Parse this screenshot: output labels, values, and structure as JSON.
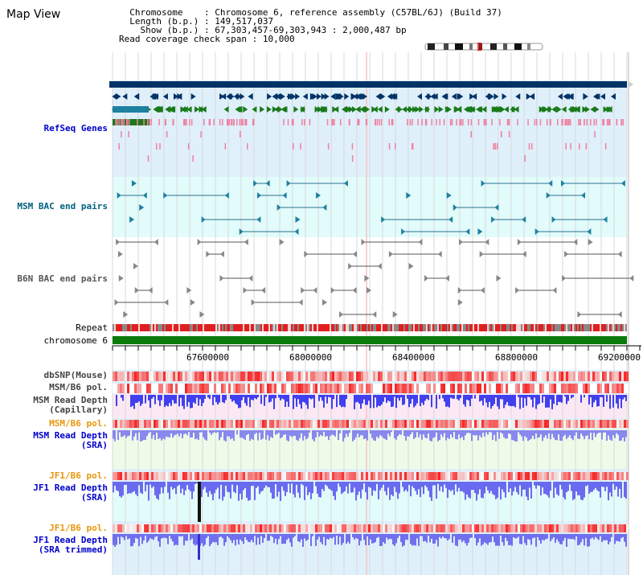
{
  "title": "Map View",
  "info": {
    "chromosome_label": "Chromosome",
    "chromosome_value": "Chromosome 6, reference assembly (C57BL/6J) (Build 37)",
    "length_label": "Length (b.p.)",
    "length_value": "149,517,037",
    "show_label": "Show (b.p.)",
    "show_value": "67,303,457-69,303,943 : 2,000,487 bp",
    "coverage_label": "Read coverage check span",
    "coverage_value": "10,000"
  },
  "tracks": {
    "refseq": "RefSeq Genes",
    "msm_bac": "MSM BAC end pairs",
    "b6n_bac": "B6N BAC end pairs",
    "repeat": "Repeat",
    "chromosome": "chromosome 6",
    "dbsnp": "dbSNP(Mouse)",
    "msm_b6_pol": "MSM/B6 pol.",
    "msm_read_depth_cap_1": "MSM Read Depth",
    "msm_read_depth_cap_2": "(Capillary)",
    "msm_b6_pol_2": "MSM/B6 pol.",
    "msm_read_depth_sra_1": "MSM Read Depth",
    "msm_read_depth_sra_2": "(SRA)",
    "jf1_b6_pol": "JF1/B6 pol.",
    "jf1_read_depth_sra_1": "JF1 Read Depth",
    "jf1_read_depth_sra_2": "(SRA)",
    "jf1_b6_pol_2": "JF1/B6 pol.",
    "jf1_read_depth_trim_1": "JF1 Read Depth",
    "jf1_read_depth_trim_2": "(SRA trimmed)"
  },
  "axis": {
    "ticks": [
      "67600000",
      "68000000",
      "68400000",
      "68800000",
      "69200000"
    ]
  },
  "colors": {
    "refseq_bg": "#dff0fb",
    "msm_bac_bg": "#e2fbfb",
    "b6n_bg": "#ffffff",
    "gene_dark": "#003366",
    "gene_green": "#1a7a1a",
    "gene_teal": "#2080a0",
    "gene_pink": "#f080a0",
    "repeat_red": "#e02020",
    "chrom_green": "#0a7a0a",
    "depth_blue": "#4040ee",
    "pol_red": "#f03030",
    "read_depth_pink_bg": "#fbe8f4",
    "sra_green_bg": "#eefbe8",
    "jf1_bg": "#e2fbfb"
  },
  "icons": {
    "ideogram": "chromosome-ideogram",
    "position_marker": "position-marker"
  }
}
